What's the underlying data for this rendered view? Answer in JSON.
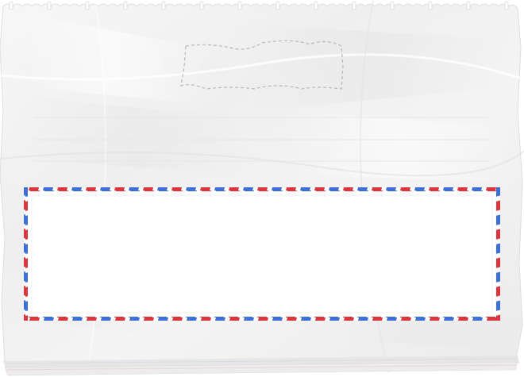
{
  "note_paper": {
    "stamp_placeholder": "",
    "writing_lines": [
      "",
      "",
      ""
    ],
    "address_box": {
      "text": "",
      "airmail_colors": {
        "red": "#d9363e",
        "blue": "#3d6fd4"
      }
    }
  },
  "colors": {
    "paper": "#f2f2f2",
    "paper_shadow": "#e2e2e2",
    "ruled_line": "#e6e6e6",
    "dashed_outline": "#b8b8b8",
    "box_fill": "#ffffff"
  }
}
